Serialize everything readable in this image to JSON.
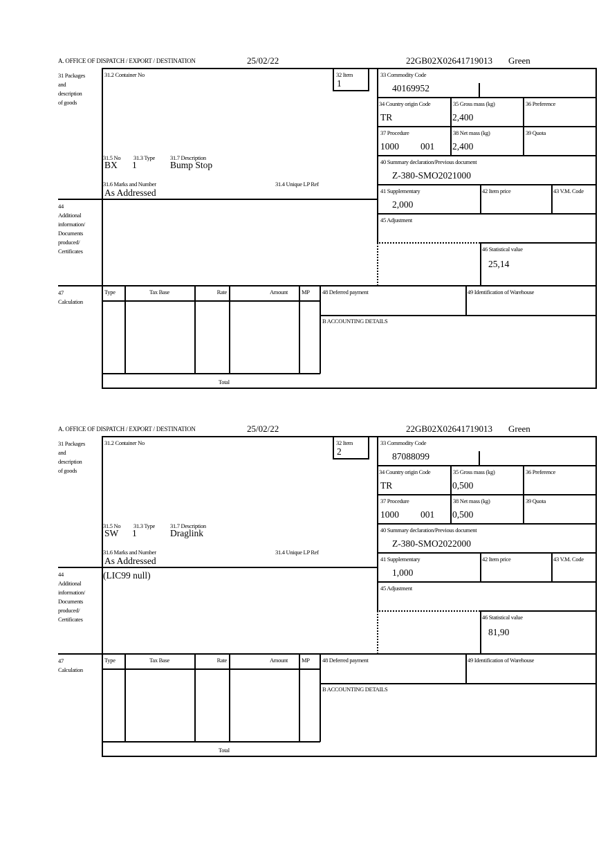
{
  "labels": {
    "office": "A.  OFFICE OF DISPATCH / EXPORT / DESTINATION",
    "packages": [
      "31 Packages",
      "and",
      "description",
      "of goods"
    ],
    "container_no": "31.2 Container No",
    "item": "32 Item",
    "commodity_code": "33 Commodity Code",
    "country_origin": "34 Country origin Code",
    "gross_mass": "35 Gross mass (kg)",
    "preference": "36 Preference",
    "procedure": "37 Procedure",
    "net_mass": "38 Net mass (kg)",
    "quota": "39 Quota",
    "summary_declaration": "40 Summary declaration/Previous document",
    "supplementary": "41 Supplementary",
    "item_price": "42 Item price",
    "vm_code": "43 V.M. Code",
    "adjustment": "45 Adjustment",
    "statistical_value": "46 Statistical value",
    "pkg_no": "31.5 No",
    "pkg_type": "31.3 Type",
    "pkg_description": "31.7 Description",
    "marks": "31.6 Marks and Number",
    "unique_lp_ref": "31.4 Unique LP Ref",
    "additional_info": [
      "44",
      "Additional",
      "information/",
      "Documents",
      "produced/",
      "Certificates"
    ],
    "calculation": [
      "47",
      "Calculation"
    ],
    "calc_headers": [
      "Type",
      "Tax Base",
      "Rate",
      "Amount",
      "MP"
    ],
    "total": "Total",
    "deferred_payment": "48 Deferred payment",
    "warehouse": "49 Identification of Warehouse",
    "accounting": "B ACCOUNTING DETAILS"
  },
  "forms": [
    {
      "date": "25/02/22",
      "reference": "22GB02X02641719013",
      "route": "Green",
      "item": "1",
      "commodity_code": "40169952",
      "country_origin": "TR",
      "gross_mass": "2,400",
      "procedure": "1000",
      "procedure_add": "001",
      "net_mass": "2,400",
      "summary_declaration": "Z-380-SMO2021000",
      "supplementary": "2,000",
      "statistical_value": "25,14",
      "pkg_no": "BX",
      "pkg_type": "1",
      "pkg_description": "Bump Stop",
      "marks": "As Addressed",
      "additional_info": ""
    },
    {
      "date": "25/02/22",
      "reference": "22GB02X02641719013",
      "route": "Green",
      "item": "2",
      "commodity_code": "87088099",
      "country_origin": "TR",
      "gross_mass": "0,500",
      "procedure": "1000",
      "procedure_add": "001",
      "net_mass": "0,500",
      "summary_declaration": "Z-380-SMO2022000",
      "supplementary": "1,000",
      "statistical_value": "81,90",
      "pkg_no": "SW",
      "pkg_type": "1",
      "pkg_description": "Draglink",
      "marks": "As Addressed",
      "additional_info": "(LIC99 null)"
    }
  ]
}
